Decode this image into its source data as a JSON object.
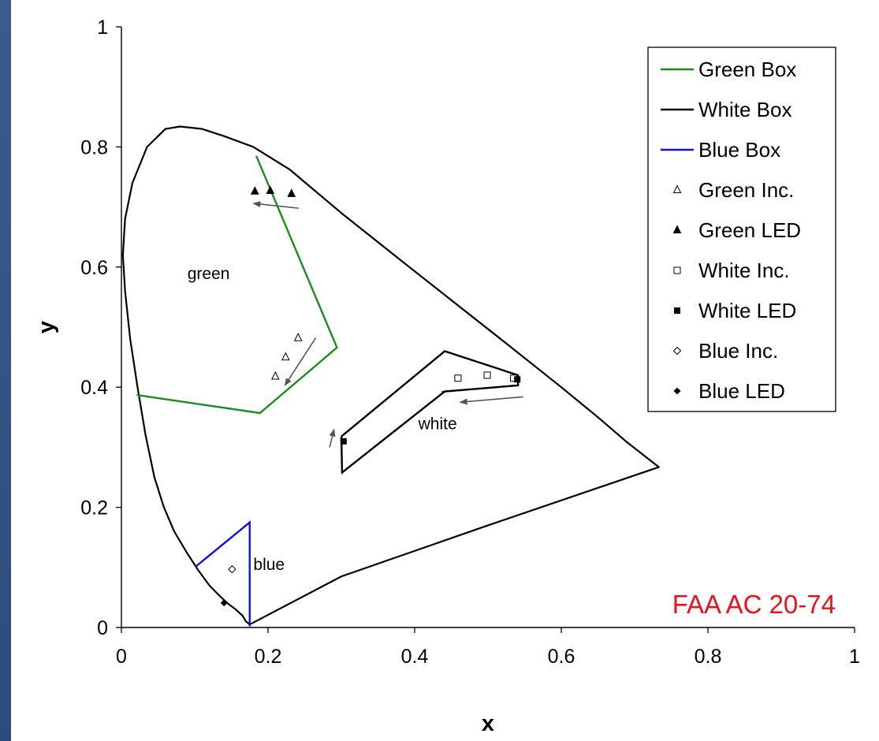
{
  "chart_data": {
    "type": "scatter",
    "title": "",
    "xlabel": "x",
    "ylabel": "y",
    "xlim": [
      0,
      1
    ],
    "ylim": [
      0,
      1
    ],
    "xticks": [
      "0",
      "0.2",
      "0.4",
      "0.6",
      "0.8",
      "1"
    ],
    "yticks": [
      "0",
      "0.2",
      "0.4",
      "0.6",
      "0.8",
      "1"
    ],
    "grid": false,
    "legend_position": "top-right",
    "series": [
      {
        "name": "Green Box",
        "kind": "line",
        "color": "#1e8c1e",
        "points": [
          [
            0.184,
            0.785
          ],
          [
            0.294,
            0.466
          ],
          [
            0.189,
            0.357
          ],
          [
            0.021,
            0.387
          ]
        ]
      },
      {
        "name": "White Box",
        "kind": "line",
        "color": "#000000",
        "points": [
          [
            0.3,
            0.318
          ],
          [
            0.441,
            0.46
          ],
          [
            0.541,
            0.42
          ],
          [
            0.541,
            0.403
          ],
          [
            0.441,
            0.393
          ],
          [
            0.301,
            0.258
          ],
          [
            0.3,
            0.318
          ]
        ]
      },
      {
        "name": "Blue Box",
        "kind": "line",
        "color": "#1010e0",
        "points": [
          [
            0.101,
            0.101
          ],
          [
            0.175,
            0.175
          ],
          [
            0.175,
            0.002
          ]
        ]
      },
      {
        "name": "Green Inc.",
        "kind": "marker",
        "marker": "triangle-open",
        "points": [
          [
            0.21,
            0.418
          ],
          [
            0.224,
            0.45
          ],
          [
            0.241,
            0.482
          ]
        ]
      },
      {
        "name": "Green LED",
        "kind": "marker",
        "marker": "triangle-filled",
        "points": [
          [
            0.182,
            0.726
          ],
          [
            0.203,
            0.727
          ],
          [
            0.232,
            0.722
          ]
        ]
      },
      {
        "name": "White Inc.",
        "kind": "marker",
        "marker": "square-open",
        "points": [
          [
            0.459,
            0.415
          ],
          [
            0.499,
            0.42
          ],
          [
            0.535,
            0.415
          ]
        ]
      },
      {
        "name": "White LED",
        "kind": "marker",
        "marker": "square-filled",
        "points": [
          [
            0.303,
            0.31
          ],
          [
            0.54,
            0.413
          ]
        ]
      },
      {
        "name": "Blue Inc.",
        "kind": "marker",
        "marker": "diamond-open",
        "points": [
          [
            0.151,
            0.097
          ]
        ]
      },
      {
        "name": "Blue LED",
        "kind": "marker",
        "marker": "diamond-filled",
        "points": [
          [
            0.14,
            0.041
          ]
        ]
      }
    ],
    "spectral_locus": [
      [
        0.175,
        0.005
      ],
      [
        0.17,
        0.01
      ],
      [
        0.165,
        0.02
      ],
      [
        0.156,
        0.03
      ],
      [
        0.145,
        0.04
      ],
      [
        0.132,
        0.055
      ],
      [
        0.12,
        0.07
      ],
      [
        0.105,
        0.095
      ],
      [
        0.089,
        0.125
      ],
      [
        0.072,
        0.16
      ],
      [
        0.058,
        0.2
      ],
      [
        0.045,
        0.25
      ],
      [
        0.033,
        0.32
      ],
      [
        0.022,
        0.4
      ],
      [
        0.012,
        0.48
      ],
      [
        0.005,
        0.56
      ],
      [
        0.002,
        0.62
      ],
      [
        0.005,
        0.68
      ],
      [
        0.015,
        0.74
      ],
      [
        0.035,
        0.8
      ],
      [
        0.06,
        0.83
      ],
      [
        0.08,
        0.834
      ],
      [
        0.11,
        0.83
      ],
      [
        0.14,
        0.818
      ],
      [
        0.18,
        0.8
      ],
      [
        0.23,
        0.762
      ],
      [
        0.3,
        0.69
      ],
      [
        0.37,
        0.622
      ],
      [
        0.45,
        0.545
      ],
      [
        0.53,
        0.468
      ],
      [
        0.6,
        0.4
      ],
      [
        0.65,
        0.35
      ],
      [
        0.69,
        0.308
      ],
      [
        0.733,
        0.267
      ],
      [
        0.5,
        0.17
      ],
      [
        0.3,
        0.085
      ],
      [
        0.175,
        0.005
      ]
    ],
    "arrows": [
      {
        "from": [
          0.242,
          0.698
        ],
        "to": [
          0.18,
          0.706
        ]
      },
      {
        "from": [
          0.265,
          0.482
        ],
        "to": [
          0.223,
          0.403
        ]
      },
      {
        "from": [
          0.284,
          0.3
        ],
        "to": [
          0.29,
          0.33
        ]
      }
    ],
    "dashed_line": {
      "points": [
        [
          0.437,
          0.392
        ],
        [
          0.537,
          0.403
        ]
      ]
    },
    "white_arrow": {
      "from": [
        0.548,
        0.384
      ],
      "to": [
        0.462,
        0.375
      ]
    },
    "annotations": [
      {
        "text": "green",
        "at": [
          0.09,
          0.58
        ]
      },
      {
        "text": "white",
        "at": [
          0.405,
          0.33
        ]
      },
      {
        "text": "blue",
        "at": [
          0.18,
          0.096
        ]
      }
    ],
    "stamp_text": "FAA AC 20-74"
  }
}
